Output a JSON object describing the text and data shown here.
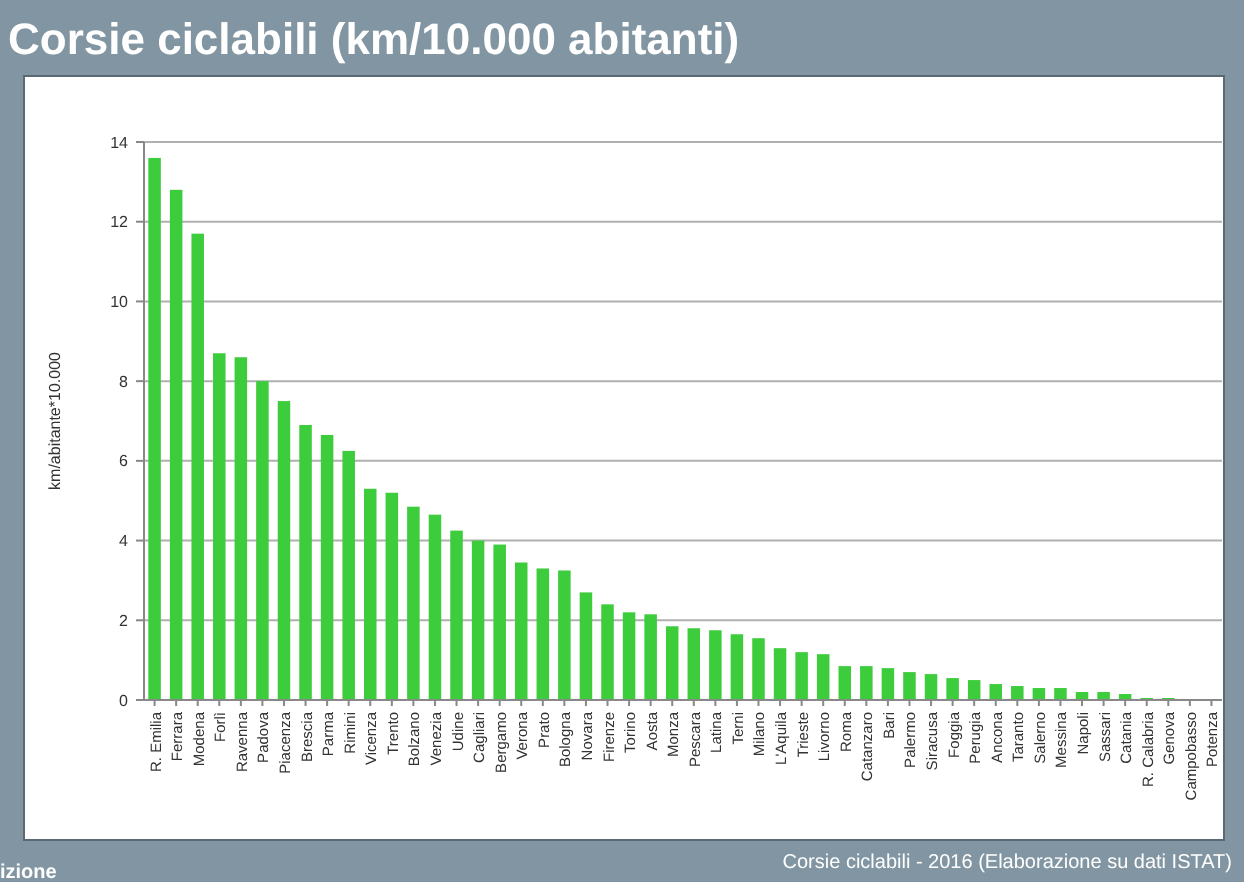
{
  "chart_data": {
    "type": "bar",
    "title": "Corsie ciclabili (km/10.000 abitanti)",
    "ylabel": "km/abitante*10.000",
    "categories": [
      "R. Emilia",
      "Ferrara",
      "Modena",
      "Forlì",
      "Ravenna",
      "Padova",
      "Piacenza",
      "Brescia",
      "Parma",
      "Rimini",
      "Vicenza",
      "Trento",
      "Bolzano",
      "Venezia",
      "Udine",
      "Cagliari",
      "Bergamo",
      "Verona",
      "Prato",
      "Bologna",
      "Novara",
      "Firenze",
      "Torino",
      "Aosta",
      "Monza",
      "Pescara",
      "Latina",
      "Terni",
      "Milano",
      "L'Aquila",
      "Trieste",
      "Livorno",
      "Roma",
      "Catanzaro",
      "Bari",
      "Palermo",
      "Siracusa",
      "Foggia",
      "Perugia",
      "Ancona",
      "Taranto",
      "Salerno",
      "Messina",
      "Napoli",
      "Sassari",
      "Catania",
      "R. Calabria",
      "Genova",
      "Campobasso",
      "Potenza"
    ],
    "values": [
      13.6,
      12.8,
      11.7,
      8.7,
      8.6,
      8.0,
      7.5,
      6.9,
      6.65,
      6.25,
      5.3,
      5.2,
      4.85,
      4.65,
      4.25,
      4.0,
      3.9,
      3.45,
      3.3,
      3.25,
      2.7,
      2.4,
      2.2,
      2.15,
      1.85,
      1.8,
      1.75,
      1.65,
      1.55,
      1.3,
      1.2,
      1.15,
      0.85,
      0.85,
      0.8,
      0.7,
      0.65,
      0.55,
      0.5,
      0.4,
      0.35,
      0.3,
      0.3,
      0.2,
      0.2,
      0.15,
      0.05,
      0.05,
      0,
      0
    ],
    "color": "#3ccc3c",
    "ylim": [
      0,
      14
    ],
    "yticks": [
      0,
      2,
      4,
      6,
      8,
      10,
      12,
      14
    ],
    "grid": "y",
    "annotations": [
      "Corsie ciclabili - 2016 (Elaborazione su dati ISTAT)",
      "izione"
    ]
  }
}
